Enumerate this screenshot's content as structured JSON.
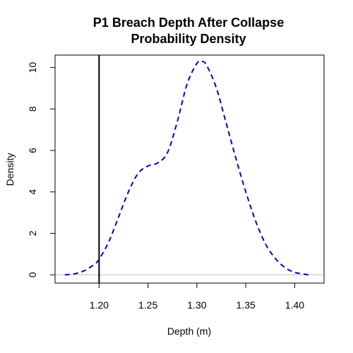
{
  "chart_data": {
    "type": "line",
    "title": [
      "P1 Breach Depth After Collapse",
      "Probability Density"
    ],
    "xlabel": "Depth (m)",
    "ylabel": "Density",
    "xlim": [
      1.155,
      1.43
    ],
    "ylim": [
      -0.4,
      10.6
    ],
    "x_ticks": [
      1.2,
      1.25,
      1.3,
      1.35,
      1.4
    ],
    "x_tick_labels": [
      "1.20",
      "1.25",
      "1.30",
      "1.35",
      "1.40"
    ],
    "y_ticks": [
      0,
      2,
      4,
      6,
      8,
      10
    ],
    "y_tick_labels": [
      "0",
      "2",
      "4",
      "6",
      "8",
      "10"
    ],
    "series": [
      {
        "style": "dashed",
        "color": "#0000cd",
        "x": [
          1.165,
          1.175,
          1.185,
          1.195,
          1.2,
          1.21,
          1.22,
          1.23,
          1.24,
          1.25,
          1.26,
          1.27,
          1.28,
          1.29,
          1.3,
          1.305,
          1.31,
          1.32,
          1.33,
          1.34,
          1.35,
          1.36,
          1.37,
          1.38,
          1.39,
          1.4,
          1.41,
          1.415
        ],
        "y": [
          0.0,
          0.05,
          0.2,
          0.5,
          0.75,
          1.6,
          2.8,
          4.0,
          4.9,
          5.25,
          5.4,
          5.9,
          7.4,
          9.2,
          10.2,
          10.3,
          10.1,
          9.0,
          7.3,
          5.6,
          4.0,
          2.6,
          1.5,
          0.8,
          0.35,
          0.12,
          0.03,
          0.0
        ]
      }
    ],
    "reference_lines": {
      "vertical_x": 1.2,
      "vertical_color": "#000000",
      "horizontal_y": 0,
      "horizontal_color": "#bebebe"
    }
  }
}
